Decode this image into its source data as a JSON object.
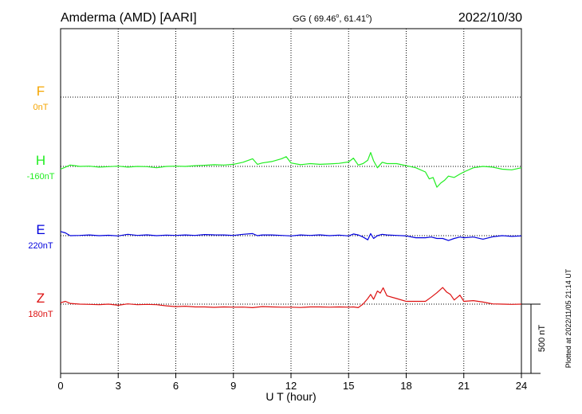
{
  "header": {
    "station": "Amderma (AMD)  [AARI]",
    "coords": "GG ( 69.46",
    "coords_lon": ",  61.41",
    "coords_end": ")",
    "date": "2022/10/30"
  },
  "footer": {
    "plotted": "Plotted at 2022/11/05 21:14 UT"
  },
  "chart_data": {
    "type": "line",
    "xlabel": "U T (hour)",
    "xlim": [
      0,
      24
    ],
    "xticks": [
      "0",
      "3",
      "6",
      "9",
      "12",
      "15",
      "18",
      "21",
      "24"
    ],
    "scale_bar": "500 nT",
    "grid": true,
    "series": [
      {
        "name": "F",
        "offset_label": "0nT",
        "color": "#f5a500",
        "x": [],
        "y": []
      },
      {
        "name": "H",
        "offset_label": "-160nT",
        "color": "#22ee22",
        "x": [
          0,
          0.25,
          0.5,
          0.75,
          1,
          1.5,
          2,
          2.5,
          3,
          3.5,
          4,
          4.5,
          5,
          5.5,
          6,
          6.5,
          7,
          7.5,
          8,
          8.5,
          9,
          9.5,
          10,
          10.25,
          10.5,
          11,
          11.5,
          11.75,
          12,
          12.5,
          13,
          13.5,
          14,
          14.5,
          15,
          15.25,
          15.5,
          15.75,
          16,
          16.15,
          16.3,
          16.5,
          16.75,
          17,
          17.5,
          18,
          18.5,
          19,
          19.2,
          19.4,
          19.6,
          19.8,
          20,
          20.2,
          20.5,
          20.8,
          21,
          21.5,
          22,
          22.5,
          23,
          23.5,
          24
        ],
        "y": [
          -180,
          -165,
          -150,
          -155,
          -160,
          -158,
          -165,
          -162,
          -158,
          -165,
          -160,
          -162,
          -170,
          -160,
          -158,
          -160,
          -155,
          -152,
          -148,
          -150,
          -145,
          -130,
          -105,
          -145,
          -135,
          -125,
          -105,
          -90,
          -135,
          -148,
          -140,
          -145,
          -142,
          -138,
          -128,
          -100,
          -150,
          -140,
          -115,
          -60,
          -120,
          -170,
          -130,
          -140,
          -140,
          -155,
          -170,
          -200,
          -250,
          -240,
          -310,
          -280,
          -260,
          -230,
          -240,
          -215,
          -200,
          -170,
          -160,
          -165,
          -180,
          -185,
          -170
        ]
      },
      {
        "name": "E",
        "offset_label": "220nT",
        "color": "#0000dd",
        "x": [
          0,
          0.25,
          0.5,
          1,
          1.5,
          2,
          2.5,
          3,
          3.5,
          4,
          4.5,
          5,
          5.5,
          6,
          6.5,
          7,
          7.5,
          8,
          8.5,
          9,
          9.5,
          10,
          10.25,
          10.5,
          11,
          11.5,
          12,
          12.5,
          13,
          13.5,
          14,
          14.5,
          15,
          15.25,
          15.5,
          15.75,
          16,
          16.15,
          16.3,
          16.5,
          16.75,
          17,
          17.5,
          18,
          18.5,
          19,
          19.3,
          19.6,
          19.9,
          20.2,
          20.5,
          20.8,
          21,
          21.5,
          22,
          22.5,
          23,
          23.5,
          24
        ],
        "y": [
          250,
          240,
          220,
          222,
          225,
          220,
          223,
          218,
          230,
          222,
          226,
          220,
          224,
          222,
          225,
          222,
          228,
          226,
          225,
          222,
          230,
          235,
          220,
          225,
          225,
          222,
          218,
          225,
          222,
          226,
          220,
          224,
          218,
          232,
          225,
          210,
          190,
          235,
          200,
          220,
          230,
          225,
          222,
          218,
          205,
          205,
          210,
          200,
          200,
          185,
          200,
          210,
          205,
          210,
          195,
          212,
          220,
          215,
          218
        ]
      },
      {
        "name": "Z",
        "offset_label": "180nT",
        "color": "#dd1111",
        "x": [
          0,
          0.25,
          0.5,
          1,
          1.5,
          2,
          2.5,
          3,
          3.5,
          4,
          4.5,
          5,
          5.5,
          6,
          6.5,
          7,
          7.5,
          8,
          8.5,
          9,
          9.5,
          10,
          10.5,
          11,
          11.5,
          12,
          12.5,
          13,
          13.5,
          14,
          14.5,
          15,
          15.25,
          15.5,
          15.75,
          16,
          16.15,
          16.3,
          16.5,
          16.65,
          16.8,
          17,
          17.5,
          18,
          18.5,
          19,
          19.3,
          19.6,
          19.9,
          20.1,
          20.3,
          20.5,
          20.8,
          21,
          21.5,
          22,
          22.5,
          23,
          23.5,
          24
        ],
        "y": [
          190,
          200,
          185,
          180,
          178,
          176,
          180,
          172,
          182,
          176,
          178,
          176,
          168,
          162,
          165,
          160,
          160,
          157,
          160,
          158,
          159,
          155,
          162,
          160,
          158,
          158,
          156,
          160,
          160,
          158,
          160,
          158,
          160,
          155,
          180,
          220,
          250,
          215,
          275,
          260,
          298,
          240,
          220,
          200,
          200,
          200,
          230,
          262,
          300,
          268,
          250,
          210,
          245,
          200,
          205,
          195,
          182,
          180,
          178,
          180
        ]
      }
    ]
  }
}
